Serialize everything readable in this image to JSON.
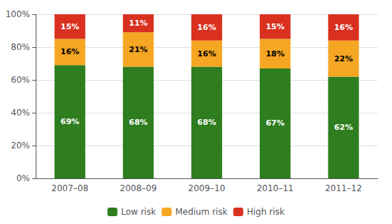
{
  "chart_data": {
    "type": "bar",
    "stacked": true,
    "data_labels": true,
    "grid": true,
    "legend": "bottom",
    "categories": [
      "2007–08",
      "2008–09",
      "2009–10",
      "2010–11",
      "2011–12"
    ],
    "series": [
      {
        "name": "Low risk",
        "color": "#2e7d1e",
        "values": [
          69,
          68,
          68,
          67,
          62
        ],
        "value_labels": [
          "69%",
          "68%",
          "68%",
          "67%",
          "62%"
        ]
      },
      {
        "name": "Medium risk",
        "color": "#f5a623",
        "values": [
          16,
          21,
          16,
          18,
          22
        ],
        "value_labels": [
          "16%",
          "21%",
          "16%",
          "18%",
          "22%"
        ]
      },
      {
        "name": "High risk",
        "color": "#d93020",
        "values": [
          15,
          11,
          16,
          15,
          16
        ],
        "value_labels": [
          "15%",
          "11%",
          "16%",
          "15%",
          "16%"
        ]
      }
    ],
    "ylim": [
      0,
      100
    ],
    "yticks": [
      {
        "value": 0,
        "label": "0%"
      },
      {
        "value": 20,
        "label": "20%"
      },
      {
        "value": 40,
        "label": "40%"
      },
      {
        "value": 60,
        "label": "60%"
      },
      {
        "value": 80,
        "label": "80%"
      },
      {
        "value": 100,
        "label": "100%"
      }
    ]
  }
}
